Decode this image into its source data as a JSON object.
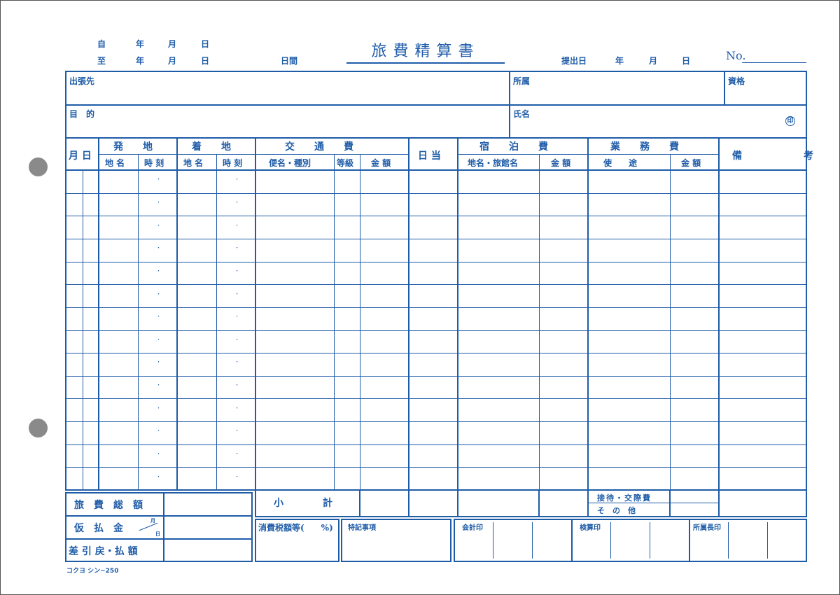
{
  "header": {
    "from_label": "自",
    "to_label": "至",
    "year": "年",
    "month": "月",
    "day": "日",
    "period_label": "日間",
    "title": "旅費精算書",
    "submit_label": "提出日",
    "no_label": "No."
  },
  "info": {
    "destination": "出張先",
    "purpose": "目　的",
    "department": "所属",
    "qualification": "資格",
    "name": "氏名",
    "seal": "印"
  },
  "table": {
    "date": "月 日",
    "departure": "発　　地",
    "arrival": "着　　地",
    "transport": "交　　通　　費",
    "daily_allowance": "日 当",
    "lodging": "宿　　泊　　費",
    "business": "業　　務　　費",
    "remarks": "備　　考",
    "place": "地 名",
    "time": "時 刻",
    "service_type": "便名・種別",
    "class": "等級",
    "amount": "金 額",
    "place_inn": "地名・旅館名",
    "purpose": "使　　途",
    "time_separator": "・",
    "row_count": 14
  },
  "footer": {
    "total_travel": "旅　費　総　額",
    "advance": "仮　払　金",
    "advance_month": "月",
    "advance_day": "日",
    "balance": "差 引 戻・払 額",
    "subtotal": "小　　　　計",
    "entertainment": "接待・交際費",
    "other": "そ　の　他",
    "consumption_tax": "消費税額等(　　%)",
    "special_notes": "特記事項",
    "accounting_seal": "会計印",
    "audit_seal": "検算印",
    "manager_seal": "所属長印",
    "form_code": "コクヨ シン−250"
  },
  "colors": {
    "ink": "#1f5ca8"
  }
}
